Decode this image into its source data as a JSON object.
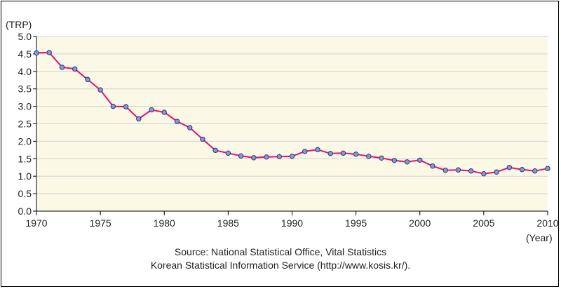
{
  "chart_data": {
    "type": "line",
    "title": "",
    "ylabel": "(TRP)",
    "xlabel": "(Year)",
    "xlim": [
      1970,
      2010
    ],
    "ylim": [
      0,
      5
    ],
    "x_ticks": [
      "1970",
      "1975",
      "1980",
      "1985",
      "1990",
      "1995",
      "2000",
      "2005",
      "2010"
    ],
    "y_ticks": [
      "0.0",
      "0.5",
      "1.0",
      "1.5",
      "2.0",
      "2.5",
      "3.0",
      "3.5",
      "4.0",
      "4.5",
      "5.0"
    ],
    "grid": "horizontal",
    "legend": "none",
    "colors": {
      "line": "#e0117a",
      "marker_fill": "#8a98d4",
      "marker_edge": "#2a3570",
      "plot_bg": "#fbf8e6",
      "grid": "#d0d0d0"
    },
    "series": [
      {
        "x": [
          1970,
          1971,
          1972,
          1973,
          1974,
          1975,
          1976,
          1977,
          1978,
          1979,
          1980,
          1981,
          1982,
          1983,
          1984,
          1985,
          1986,
          1987,
          1988,
          1989,
          1990,
          1991,
          1992,
          1993,
          1994,
          1995,
          1996,
          1997,
          1998,
          1999,
          2000,
          2001,
          2002,
          2003,
          2004,
          2005,
          2006,
          2007,
          2008,
          2009,
          2010
        ],
        "values": [
          4.53,
          4.54,
          4.12,
          4.07,
          3.77,
          3.47,
          3.0,
          2.99,
          2.64,
          2.9,
          2.83,
          2.57,
          2.39,
          2.06,
          1.74,
          1.66,
          1.58,
          1.53,
          1.55,
          1.56,
          1.57,
          1.71,
          1.76,
          1.65,
          1.66,
          1.63,
          1.57,
          1.52,
          1.45,
          1.41,
          1.46,
          1.29,
          1.17,
          1.18,
          1.15,
          1.07,
          1.12,
          1.25,
          1.19,
          1.15,
          1.22
        ]
      }
    ]
  },
  "source": {
    "line1": "Source: National Statistical Office, Vital Statistics",
    "line2": "Korean Statistical Information Service (http://www.kosis.kr/)."
  }
}
